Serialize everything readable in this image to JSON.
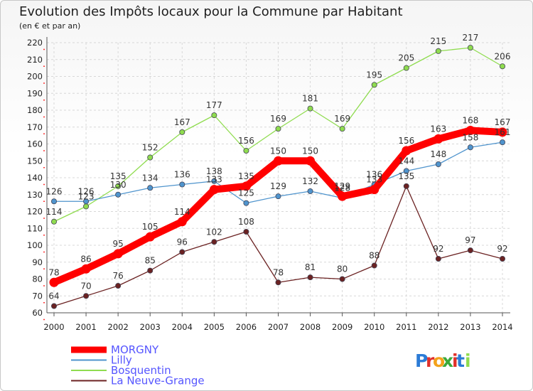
{
  "chart_data": {
    "type": "line",
    "title": "Evolution des Impôts locaux pour la Commune par Habitant",
    "subtitle": "(en € et par an)",
    "x": [
      "2000",
      "2001",
      "2002",
      "2003",
      "2004",
      "2005",
      "2006",
      "2007",
      "2008",
      "2009",
      "2010",
      "2011",
      "2012",
      "2013",
      "2014"
    ],
    "ylim": [
      60,
      220
    ],
    "yticks": [
      60,
      70,
      80,
      90,
      100,
      110,
      120,
      130,
      140,
      150,
      160,
      170,
      180,
      190,
      200,
      210,
      220
    ],
    "grid": true,
    "legend_position": "bottom-left",
    "series": [
      {
        "name": "MORGNY",
        "color": "#ff0000",
        "values": [
          78,
          86,
          95,
          105,
          114,
          133,
          135,
          150,
          150,
          129,
          133,
          156,
          163,
          168,
          167
        ]
      },
      {
        "name": "Lilly",
        "color": "#4f94cd",
        "values": [
          126,
          126,
          130,
          134,
          136,
          138,
          125,
          129,
          132,
          128,
          136,
          144,
          148,
          158,
          161
        ]
      },
      {
        "name": "Bosquentin",
        "color": "#8fdc4f",
        "values": [
          114,
          123,
          135,
          152,
          167,
          177,
          156,
          169,
          181,
          169,
          195,
          205,
          215,
          217,
          206
        ]
      },
      {
        "name": "La Neuve-Grange",
        "color": "#6b2222",
        "values": [
          64,
          70,
          76,
          85,
          96,
          102,
          108,
          78,
          81,
          80,
          88,
          135,
          92,
          97,
          92
        ]
      }
    ]
  },
  "logo": {
    "text": "Proxiti",
    "letters": [
      "P",
      "r",
      "o",
      "x",
      "i",
      "t",
      "i"
    ]
  }
}
